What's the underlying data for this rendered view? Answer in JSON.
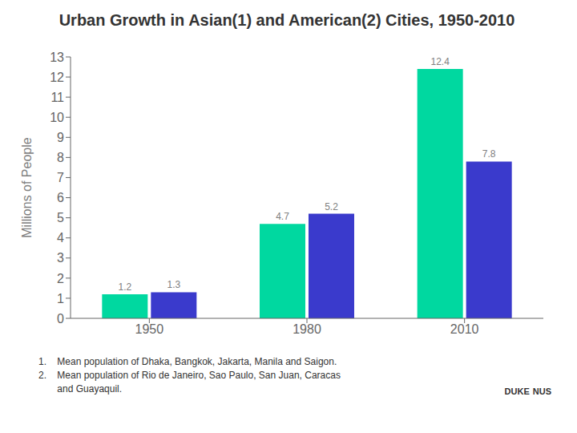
{
  "chart_data": {
    "type": "bar",
    "title": "Urban Growth in Asian(1) and American(2) Cities, 1950-2010",
    "categories": [
      "1950",
      "1980",
      "2010"
    ],
    "series": [
      {
        "color": "#00D8A0",
        "values": [
          1.2,
          4.7,
          12.4
        ]
      },
      {
        "color": "#3A3ACC",
        "values": [
          1.3,
          5.2,
          7.8
        ]
      }
    ],
    "ylabel": "Millions of People",
    "ylim": [
      0,
      13
    ],
    "yticks": [
      0,
      1,
      2,
      3,
      4,
      5,
      6,
      7,
      8,
      9,
      10,
      11,
      12,
      13
    ],
    "grid": false,
    "data_labels": true,
    "annotations": [
      "1.    Mean population of Dhaka, Bangkok, Jakarta, Manila and Saigon.",
      "2.    Mean population of Rio de Janeiro, Sao Paulo, San Juan, Caracas",
      "       and Guayaquil.",
      "DUKE",
      "NUS"
    ]
  }
}
